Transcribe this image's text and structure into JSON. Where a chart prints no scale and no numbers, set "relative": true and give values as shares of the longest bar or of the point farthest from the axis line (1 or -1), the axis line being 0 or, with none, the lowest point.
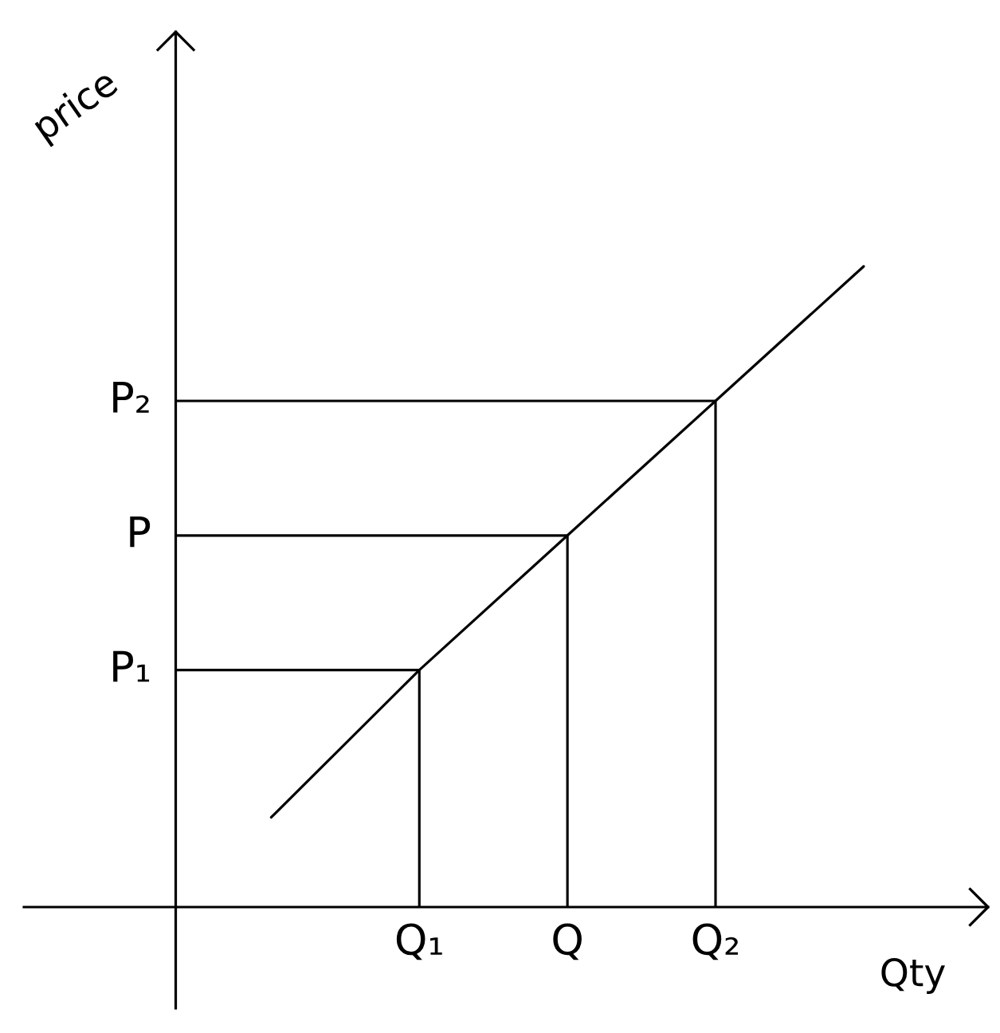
{
  "chart_data": {
    "type": "line",
    "relative": true,
    "ylabel": "price",
    "xlabel": "Qty",
    "categories": [
      null,
      "Q₁",
      "Q",
      "Q₂",
      null
    ],
    "series": [
      {
        "color": "#000000",
        "values": [
          0.14,
          0.37,
          0.58,
          0.79,
          1.0
        ]
      },
      {
        "type": "bar",
        "color": "#000000",
        "values": [
          null,
          0.37,
          0.58,
          0.79,
          null
        ]
      }
    ],
    "ref_lines": [
      {
        "axis": "y",
        "value": 0.79,
        "label": "P₂",
        "color": "#000000"
      },
      {
        "axis": "y",
        "value": 0.58,
        "label": "P",
        "color": "#000000"
      },
      {
        "axis": "y",
        "value": 0.37,
        "label": "P₁",
        "color": "#000000"
      }
    ]
  }
}
